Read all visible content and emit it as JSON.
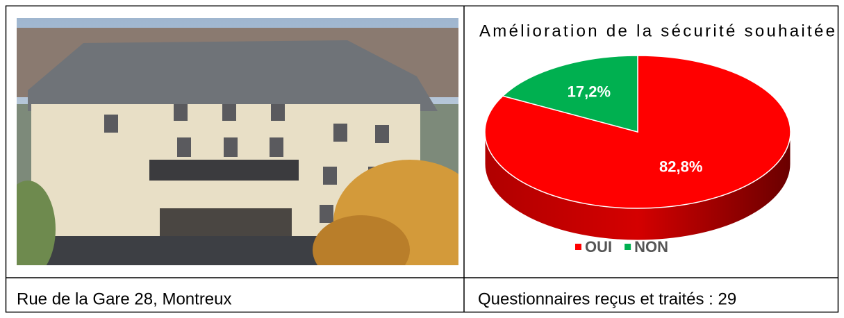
{
  "chart_data": {
    "type": "pie",
    "title": "Amélioration de la sécurité souhaitée",
    "categories": [
      "OUI",
      "NON"
    ],
    "values": [
      82.8,
      17.2
    ],
    "value_labels": [
      "82,8%",
      "17,2%"
    ],
    "colors": [
      "#ff0000",
      "#00b050"
    ],
    "legend": "bottom"
  },
  "captions": [
    "Rue de la Gare 28, Montreux",
    "Questionnaires reçus et traités : 29"
  ]
}
